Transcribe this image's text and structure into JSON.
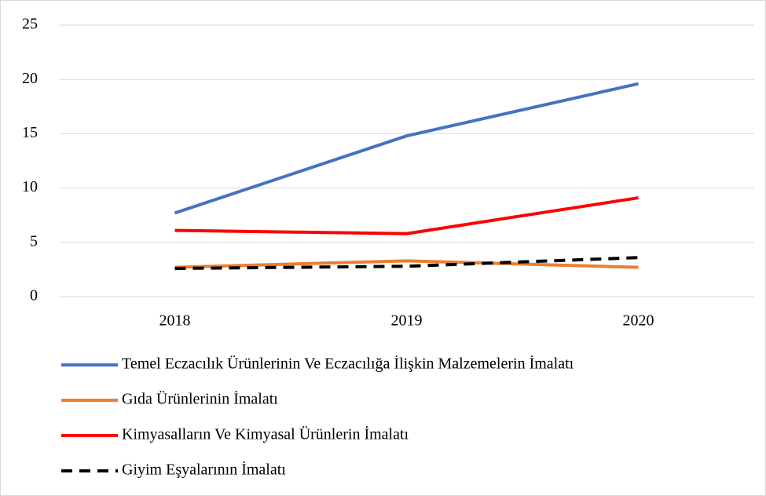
{
  "chart_data": {
    "type": "line",
    "categories": [
      "2018",
      "2019",
      "2020"
    ],
    "series": [
      {
        "name": "Temel Eczacılık Ürünlerinin Ve Eczacılığa İlişkin Malzemelerin İmalatı",
        "color": "#4472c4",
        "values": [
          7.7,
          14.8,
          19.6
        ]
      },
      {
        "name": "Gıda Ürünlerinin İmalatı",
        "color": "#ed7d31",
        "values": [
          2.7,
          3.3,
          2.7
        ]
      },
      {
        "name": "Kimyasalların Ve Kimyasal Ürünlerin İmalatı",
        "color": "#ff0000",
        "values": [
          6.1,
          5.8,
          9.1
        ]
      },
      {
        "name": "Giyim Eşyalarının İmalatı",
        "color": "#000000",
        "values": [
          2.6,
          2.8,
          3.6
        ],
        "style": "dashed"
      }
    ],
    "ylim": [
      0,
      25
    ],
    "yticks": [
      0,
      5,
      10,
      15,
      20,
      25
    ],
    "grid": true,
    "legend": "bottom"
  }
}
